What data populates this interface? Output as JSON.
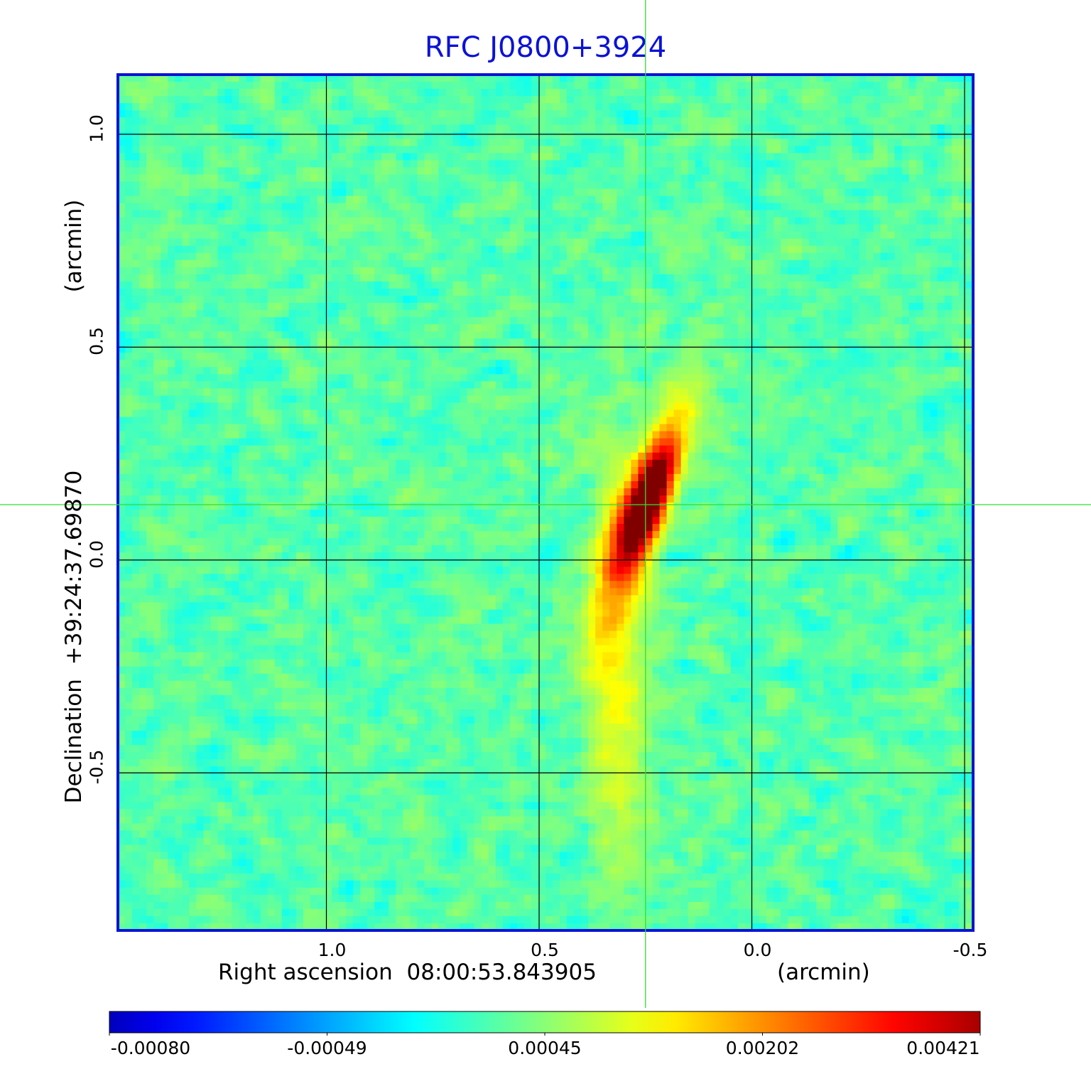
{
  "chart_data": {
    "type": "heatmap",
    "title": "RFC J0800+3924",
    "xlabel": {
      "prefix": "Right ascension",
      "center": "08:00:53.843905",
      "unit": "(arcmin)"
    },
    "ylabel": {
      "prefix": "Declination",
      "center": "+39:24:37.69870",
      "unit": "(arcmin)"
    },
    "x_axis": {
      "range_arcmin": [
        1.49,
        -0.52
      ],
      "ticks": [
        1.0,
        0.5,
        0.0,
        -0.5
      ],
      "tick_labels": [
        "1.0",
        "0.5",
        "0.0",
        "-0.5"
      ],
      "inverted": true
    },
    "y_axis": {
      "range_arcmin": [
        -0.87,
        1.14
      ],
      "ticks": [
        1.0,
        0.5,
        0.0,
        -0.5
      ],
      "tick_labels": [
        "1.0",
        "0.5",
        "0.0",
        "-0.5"
      ]
    },
    "grid": true,
    "crosshair_arcmin": {
      "x": 0.25,
      "y": 0.13
    },
    "source": {
      "peak_position_arcmin": {
        "x": 0.25,
        "y": 0.13
      },
      "peak_value": 0.00421,
      "position_angle_deg": 20,
      "description": "elongated compact source with extended emission to the south"
    },
    "image_grid": {
      "columns": 120,
      "rows": 120
    },
    "colorbar": {
      "colormap": "jet",
      "min": -0.0008,
      "max": 0.00421,
      "ticks": [
        -0.0008,
        -0.00049,
        0.00045,
        0.00202,
        0.00421
      ],
      "tick_labels": [
        "-0.00080",
        "-0.00049",
        "0.00045",
        "0.00202",
        "0.00421"
      ],
      "placement": "bottom"
    },
    "colors": {
      "title": "#0a12d6",
      "frame": "#0a12d6",
      "crosshair": "#33dd33",
      "grid": "#000000"
    }
  }
}
